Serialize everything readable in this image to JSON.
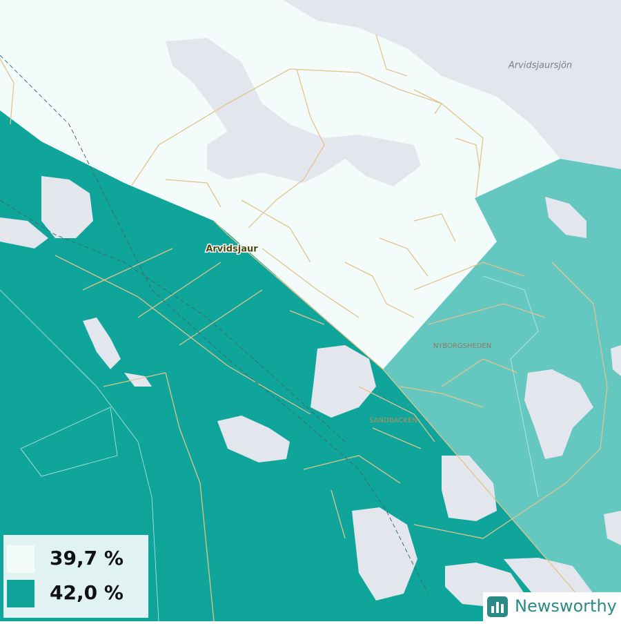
{
  "map": {
    "places": [
      {
        "label": "Arvidsjaur"
      },
      {
        "label": "Arvidsjaursjön"
      },
      {
        "label": "NYBORGSHEDEN"
      },
      {
        "label": "SANDBACKEN"
      }
    ],
    "legend": [
      {
        "label": "39,7 %",
        "color": "#f4fbfb"
      },
      {
        "label": "42,0 %",
        "color": "#0fa59b"
      }
    ],
    "brand": "Newsworthy"
  }
}
